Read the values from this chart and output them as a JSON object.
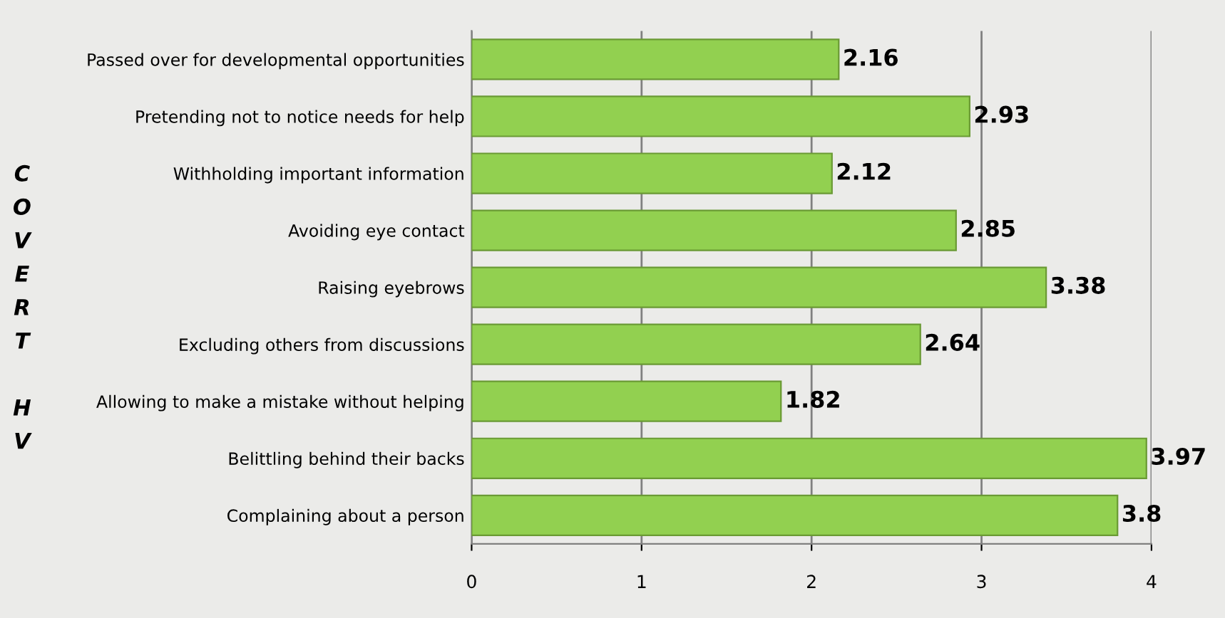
{
  "chart_data": {
    "type": "bar",
    "orientation": "horizontal",
    "ylabel": "COVERT HV",
    "categories": [
      "Passed over for developmental opportunities",
      "Pretending not to notice needs for help",
      "Withholding important information",
      "Avoiding eye contact",
      "Raising eyebrows",
      "Excluding others from discussions",
      "Allowing to make a mistake without helping",
      "Belittling behind their backs",
      "Complaining about a person"
    ],
    "values": [
      2.16,
      2.93,
      2.12,
      2.85,
      3.38,
      2.64,
      1.82,
      3.97,
      3.8
    ],
    "color": "#92d050",
    "xlim": [
      0,
      4
    ],
    "xticks": [
      0,
      1,
      2,
      3,
      4
    ],
    "grid": "x",
    "data_labels": true
  }
}
